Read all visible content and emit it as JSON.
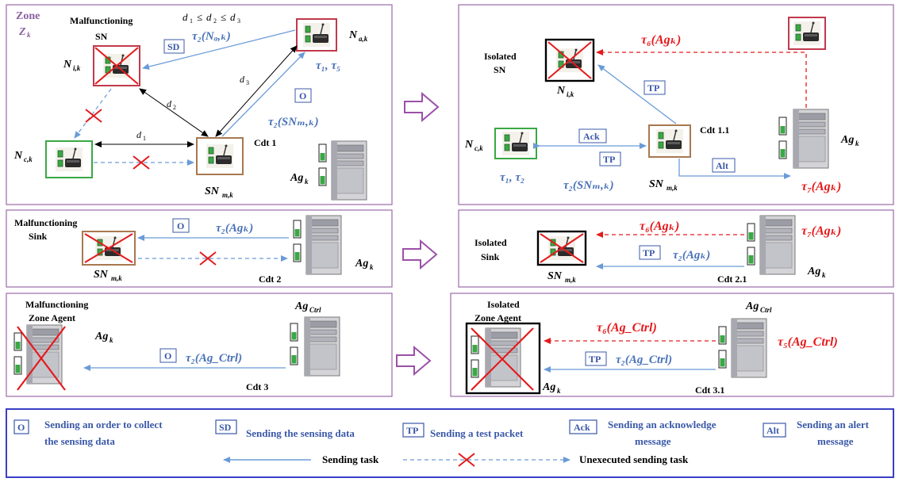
{
  "colors": {
    "panel_border": "#9b6aa8",
    "legend_border": "#3a3fc4",
    "blue_arrow": "#6a9bd8",
    "red_arrow": "#e41a1c",
    "black_arrow": "#000000",
    "node_green": "#3aa844",
    "node_red": "#c0394b",
    "node_brown": "#a87850",
    "node_black": "#000000",
    "text_blue": "#4a73b8",
    "text_red": "#e41a1c"
  },
  "p1": {
    "zone": "Zone",
    "zone_sym": "Z",
    "zone_sub": "k",
    "malf_line1": "Malfunctioning",
    "malf_line2": "SN",
    "dist_cond": "d",
    "d1": "d",
    "d2": "d",
    "d3": "d",
    "nik_label": "N",
    "nik_sub": "i,k",
    "nak_label": "N",
    "nak_sub": "a,k",
    "nck_label": "N",
    "nck_sub": "c,k",
    "snm_label": "SN",
    "snm_sub": "m,k",
    "cdt": "Cdt 1",
    "ag_label": "Ag",
    "ag_sub": "k",
    "sd_tag": "SD",
    "o_tag": "O",
    "tau2_nak": "τ₂(Nₐ,ₖ)",
    "tau1_tau5": "τ₁, τ₅",
    "tau2_snm": "τ₂(SNₘ,ₖ)"
  },
  "p2": {
    "isolated_line1": "Isolated",
    "isolated_line2": "SN",
    "nik_label": "N",
    "nik_sub": "i,k",
    "nck_label": "N",
    "nck_sub": "c,k",
    "snm_label": "SN",
    "snm_sub": "m,k",
    "cdt": "Cdt 1.1",
    "ag_label": "Ag",
    "ag_sub": "k",
    "tp_tag": "TP",
    "ack_tag": "Ack",
    "tp2_tag": "TP",
    "alt_tag": "Alt",
    "tau6": "τ₆(Agₖ)",
    "tau7": "τ₇(Agₖ)",
    "tau1_tau2": "τ₁, τ₂",
    "tau2_snm": "τ₂(SNₘ,ₖ)"
  },
  "p3": {
    "malf_line1": "Malfunctioning",
    "malf_line2": "Sink",
    "snm_label": "SN",
    "snm_sub": "m,k",
    "cdt": "Cdt 2",
    "ag_label": "Ag",
    "ag_sub": "k",
    "o_tag": "O",
    "tau2": "τ₂(Agₖ)"
  },
  "p4": {
    "isolated_line1": "Isolated",
    "isolated_line2": "Sink",
    "snm_label": "SN",
    "snm_sub": "m,k",
    "cdt": "Cdt 2.1",
    "ag_label": "Ag",
    "ag_sub": "k",
    "tp_tag": "TP",
    "tau6": "τ₆(Agₖ)",
    "tau7": "τ₇(Agₖ)",
    "tau2": "τ₂(Agₖ)"
  },
  "p5": {
    "malf_line1": "Malfunctioning",
    "malf_line2": "Zone Agent",
    "ag_label": "Ag",
    "ag_sub": "k",
    "ctrl_label": "Ag",
    "ctrl_sub": "Ctrl",
    "cdt": "Cdt 3",
    "o_tag": "O",
    "tau2": "τ₂(Ag_Ctrl)"
  },
  "p6": {
    "isolated_line1": "Isolated",
    "isolated_line2": "Zone Agent",
    "ag_label": "Ag",
    "ag_sub": "k",
    "ctrl_label": "Ag",
    "ctrl_sub": "Ctrl",
    "cdt": "Cdt 3.1",
    "tp_tag": "TP",
    "tau6": "τ₆(Ag_Ctrl)",
    "tau5": "τ₅(Ag_Ctrl)",
    "tau2": "τ₂(Ag_Ctrl)"
  },
  "legend": {
    "o_tag": "O",
    "o_text1": "Sending an order to collect",
    "o_text2": "the sensing data",
    "sd_tag": "SD",
    "sd_text": "Sending the sensing data",
    "tp_tag": "TP",
    "tp_text": "Sending a test packet",
    "ack_tag": "Ack",
    "ack_text1": "Sending an acknowledge",
    "ack_text2": "message",
    "alt_tag": "Alt",
    "alt_text1": "Sending an alert",
    "alt_text2": "message",
    "send_task": "Sending task",
    "unexec_task": "Unexecuted sending task"
  }
}
